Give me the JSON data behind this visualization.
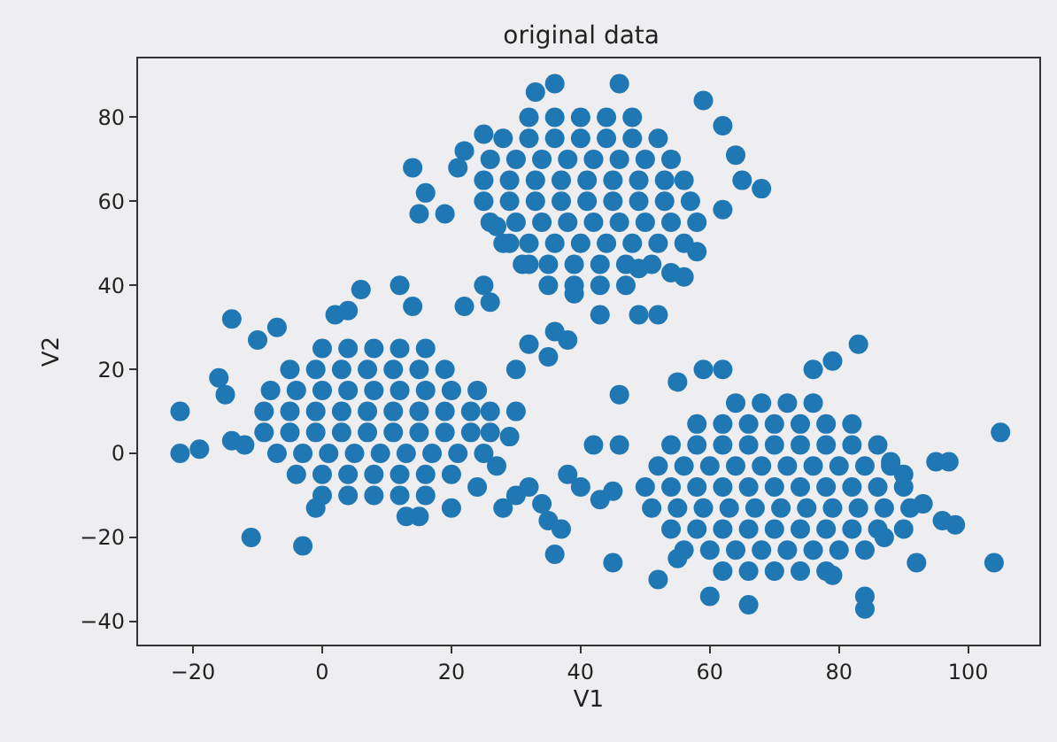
{
  "chart_data": {
    "type": "scatter",
    "title": "original data",
    "xlabel": "V1",
    "ylabel": "V2",
    "xlim": [
      -28.5,
      111
    ],
    "ylim": [
      -45.5,
      94
    ],
    "xticks": [
      -20,
      0,
      20,
      40,
      60,
      80,
      100
    ],
    "yticks": [
      -40,
      -20,
      0,
      20,
      40,
      60,
      80
    ],
    "grid": false,
    "marker": "circle",
    "series": [
      {
        "color": "#1f77b4",
        "x": [
          0,
          4,
          8,
          12,
          16,
          -5,
          -1,
          3,
          7,
          11,
          15,
          19,
          -8,
          -4,
          0,
          4,
          8,
          12,
          16,
          20,
          24,
          -9,
          -5,
          -1,
          3,
          7,
          11,
          15,
          19,
          23,
          26,
          -9,
          -5,
          -1,
          3,
          7,
          11,
          15,
          19,
          23,
          26,
          -7,
          -3,
          1,
          5,
          9,
          13,
          17,
          21,
          25,
          -4,
          0,
          4,
          8,
          12,
          16,
          20,
          0,
          4,
          8,
          12,
          16,
          -22,
          -22,
          -19,
          -11,
          -3,
          -16,
          -15,
          -14,
          -12,
          -14,
          -10,
          -7,
          2,
          4,
          6,
          12,
          14,
          22,
          26,
          25,
          28,
          30,
          32,
          35,
          13,
          15,
          -1,
          30,
          30,
          29,
          27,
          20,
          24
        ],
        "values": [
          25,
          25,
          25,
          25,
          25,
          20,
          20,
          20,
          20,
          20,
          20,
          20,
          15,
          15,
          15,
          15,
          15,
          15,
          15,
          15,
          15,
          10,
          10,
          10,
          10,
          10,
          10,
          10,
          10,
          10,
          10,
          5,
          5,
          5,
          5,
          5,
          5,
          5,
          5,
          5,
          5,
          0,
          0,
          0,
          0,
          0,
          0,
          0,
          0,
          0,
          -5,
          -5,
          -5,
          -5,
          -5,
          -5,
          -5,
          -10,
          -10,
          -10,
          -10,
          -10,
          10,
          0,
          1,
          -20,
          -22,
          18,
          14,
          3,
          2,
          32,
          27,
          30,
          33,
          34,
          39,
          40,
          35,
          35,
          36,
          40,
          -13,
          -10,
          -8,
          -16,
          -15,
          -15,
          -13,
          20,
          10,
          4,
          -3,
          -13,
          -8
        ]
      },
      {
        "color": "#1f77b4",
        "x": [
          32,
          36,
          40,
          44,
          48,
          28,
          32,
          36,
          40,
          44,
          48,
          52,
          26,
          30,
          34,
          38,
          42,
          46,
          50,
          54,
          25,
          29,
          33,
          37,
          41,
          45,
          49,
          53,
          56,
          25,
          29,
          33,
          37,
          41,
          45,
          49,
          53,
          57,
          26,
          30,
          34,
          38,
          42,
          46,
          50,
          54,
          58,
          28,
          32,
          36,
          40,
          44,
          48,
          52,
          56,
          31,
          35,
          39,
          43,
          47,
          51,
          35,
          39,
          43,
          47,
          14,
          16,
          15,
          19,
          21,
          22,
          25,
          33,
          36,
          46,
          59,
          62,
          64,
          65,
          68,
          62,
          58,
          56,
          54,
          49,
          39,
          43,
          49,
          52,
          32,
          29,
          27,
          36,
          35,
          32,
          38
        ],
        "values": [
          80,
          80,
          80,
          80,
          80,
          75,
          75,
          75,
          75,
          75,
          75,
          75,
          70,
          70,
          70,
          70,
          70,
          70,
          70,
          70,
          65,
          65,
          65,
          65,
          65,
          65,
          65,
          65,
          65,
          60,
          60,
          60,
          60,
          60,
          60,
          60,
          60,
          60,
          55,
          55,
          55,
          55,
          55,
          55,
          55,
          55,
          55,
          50,
          50,
          50,
          50,
          50,
          50,
          50,
          50,
          45,
          45,
          45,
          45,
          45,
          45,
          40,
          40,
          40,
          40,
          68,
          62,
          57,
          57,
          68,
          72,
          76,
          86,
          88,
          88,
          84,
          78,
          71,
          65,
          63,
          58,
          48,
          42,
          43,
          44,
          38,
          33,
          33,
          33,
          45,
          50,
          54,
          29,
          23,
          26,
          27
        ]
      },
      {
        "color": "#1f77b4",
        "x": [
          64,
          68,
          72,
          76,
          58,
          62,
          66,
          70,
          74,
          78,
          82,
          54,
          58,
          62,
          66,
          70,
          74,
          78,
          82,
          86,
          52,
          56,
          60,
          64,
          68,
          72,
          76,
          80,
          84,
          88,
          50,
          54,
          58,
          62,
          66,
          70,
          74,
          78,
          82,
          86,
          90,
          51,
          55,
          59,
          63,
          67,
          71,
          75,
          79,
          83,
          87,
          91,
          54,
          58,
          62,
          66,
          70,
          74,
          78,
          82,
          86,
          90,
          56,
          60,
          64,
          68,
          72,
          76,
          80,
          84,
          62,
          66,
          70,
          74,
          78,
          105,
          104,
          95,
          97,
          93,
          96,
          98,
          92,
          87,
          84,
          84,
          79,
          66,
          60,
          55,
          52,
          45,
          36,
          37,
          34,
          43,
          45,
          46,
          42,
          40,
          55,
          59,
          62,
          76,
          79,
          83,
          88,
          90,
          38,
          46
        ],
        "values": [
          12,
          12,
          12,
          12,
          7,
          7,
          7,
          7,
          7,
          7,
          7,
          2,
          2,
          2,
          2,
          2,
          2,
          2,
          2,
          2,
          -3,
          -3,
          -3,
          -3,
          -3,
          -3,
          -3,
          -3,
          -3,
          -3,
          -8,
          -8,
          -8,
          -8,
          -8,
          -8,
          -8,
          -8,
          -8,
          -8,
          -8,
          -13,
          -13,
          -13,
          -13,
          -13,
          -13,
          -13,
          -13,
          -13,
          -13,
          -13,
          -18,
          -18,
          -18,
          -18,
          -18,
          -18,
          -18,
          -18,
          -18,
          -18,
          -23,
          -23,
          -23,
          -23,
          -23,
          -23,
          -23,
          -23,
          -28,
          -28,
          -28,
          -28,
          -28,
          5,
          -26,
          -2,
          -2,
          -12,
          -16,
          -17,
          -26,
          -20,
          -34,
          -37,
          -29,
          -36,
          -34,
          -25,
          -30,
          -26,
          -24,
          -18,
          -12,
          -11,
          -9,
          2,
          2,
          -8,
          17,
          20,
          20,
          20,
          22,
          26,
          -2,
          -5,
          -5,
          14
        ]
      }
    ]
  }
}
